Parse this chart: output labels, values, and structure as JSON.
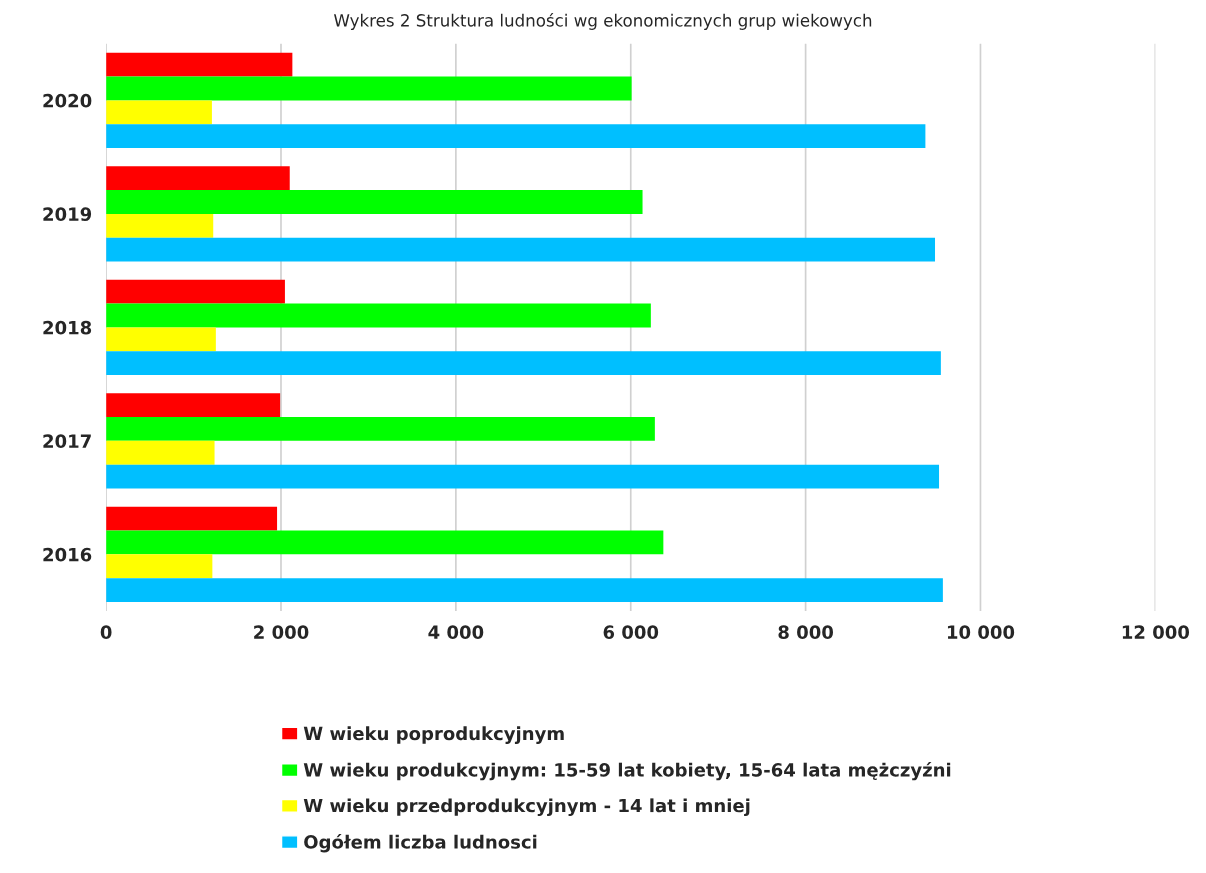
{
  "chart_data": {
    "type": "bar",
    "orientation": "horizontal",
    "title": "Wykres 2 Struktura ludności wg ekonomicznych grup wiekowych",
    "categories": [
      "2020",
      "2019",
      "2018",
      "2017",
      "2016"
    ],
    "series": [
      {
        "name": "W wieku poprodukcyjnym",
        "color": "#ff0000",
        "values": [
          2130,
          2100,
          2045,
          1990,
          1955
        ]
      },
      {
        "name": "W wieku produkcyjnym: 15-59 lat kobiety, 15-64 lata mężczyźni",
        "color": "#00ff00",
        "values": [
          6010,
          6135,
          6230,
          6276,
          6373
        ]
      },
      {
        "name": "W wieku przedprodukcyjnym - 14 lat i mniej",
        "color": "#ffff00",
        "values": [
          1210,
          1225,
          1255,
          1240,
          1215
        ]
      },
      {
        "name": "Ogółem liczba ludnosci",
        "color": "#00bfff",
        "values": [
          9370,
          9480,
          9547,
          9526,
          9570
        ]
      }
    ],
    "xlim": [
      0,
      12000
    ],
    "xticks": [
      {
        "value": 0,
        "label": "0"
      },
      {
        "value": 2000,
        "label": "2 000"
      },
      {
        "value": 4000,
        "label": "4 000"
      },
      {
        "value": 6000,
        "label": "6 000"
      },
      {
        "value": 8000,
        "label": "8 000"
      },
      {
        "value": 10000,
        "label": "10 000"
      },
      {
        "value": 12000,
        "label": "12 000"
      }
    ],
    "grid": "x",
    "legend": "bottom"
  }
}
